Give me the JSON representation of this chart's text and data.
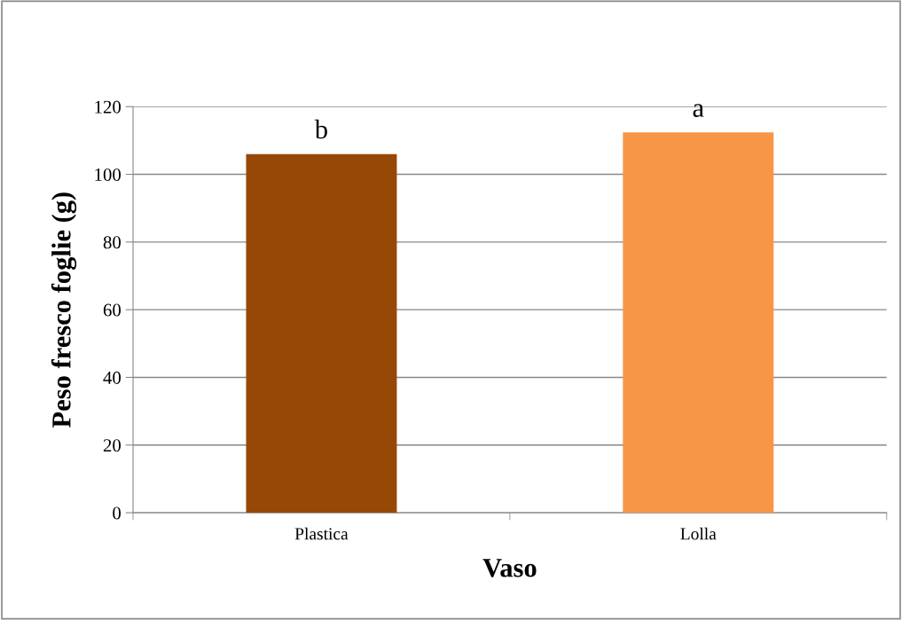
{
  "chart_data": {
    "type": "bar",
    "xlabel": "Vaso",
    "ylabel": "Peso fresco foglie (g)",
    "categories": [
      "Plastica",
      "Lolla"
    ],
    "values": [
      106,
      112.4
    ],
    "colors": [
      "#974807",
      "#f79646"
    ],
    "ylim": [
      0,
      120
    ],
    "yticks": [
      0,
      20,
      40,
      60,
      80,
      100,
      120
    ],
    "grid": "y",
    "annotations": [
      "b",
      "a"
    ]
  }
}
